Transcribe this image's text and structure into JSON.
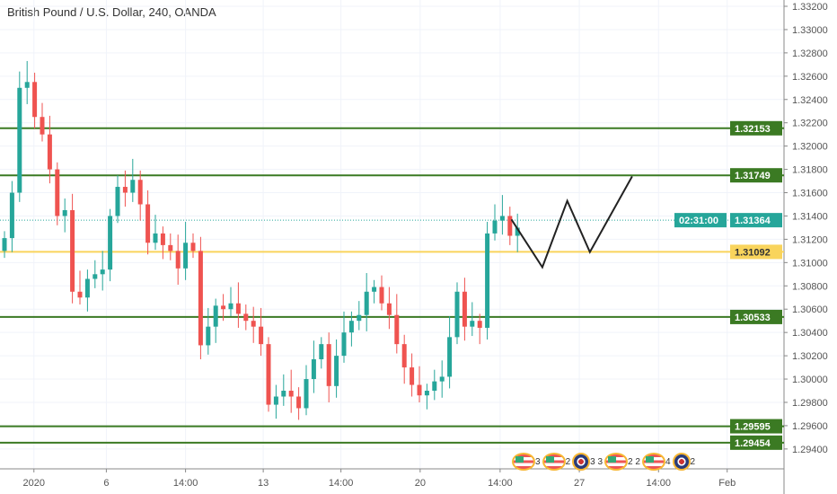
{
  "title": "British Pound / U.S. Dollar, 240, OANDA",
  "chart_data": {
    "type": "candlestick",
    "title": "British Pound / U.S. Dollar, 240, OANDA",
    "ylim": [
      1.2935,
      1.3325
    ],
    "price_ticks": [
      "1.33200",
      "1.33000",
      "1.32800",
      "1.32600",
      "1.32400",
      "1.32200",
      "1.32000",
      "1.31800",
      "1.31600",
      "1.31400",
      "1.31200",
      "1.31000",
      "1.30800",
      "1.30600",
      "1.30400",
      "1.30200",
      "1.30000",
      "1.29800",
      "1.29600",
      "1.29400"
    ],
    "time_ticks": [
      {
        "label": "2020",
        "i": 3.9
      },
      {
        "label": "6",
        "i": 13.5
      },
      {
        "label": "14:00",
        "i": 24
      },
      {
        "label": "13",
        "i": 34.3
      },
      {
        "label": "14:00",
        "i": 44.6
      },
      {
        "label": "20",
        "i": 55.1
      },
      {
        "label": "14:00",
        "i": 65.7
      },
      {
        "label": "27",
        "i": 76.2
      },
      {
        "label": "14:00",
        "i": 86.7
      },
      {
        "label": "Feb",
        "i": 95.8
      }
    ],
    "closes": [
      1.3121,
      1.316,
      1.325,
      1.3255,
      1.3225,
      1.321,
      1.318,
      1.314,
      1.3145,
      1.3075,
      1.307,
      1.3086,
      1.309,
      1.3094,
      1.314,
      1.3165,
      1.316,
      1.3171,
      1.315,
      1.3117,
      1.3125,
      1.3115,
      1.311,
      1.3095,
      1.3117,
      1.311,
      1.3029,
      1.3045,
      1.3063,
      1.306,
      1.3065,
      1.3056,
      1.305,
      1.3045,
      1.303,
      1.2978,
      1.2985,
      1.299,
      1.2985,
      1.2975,
      1.3,
      1.3017,
      1.303,
      1.2994,
      1.302,
      1.304,
      1.305,
      1.3055,
      1.3075,
      1.3079,
      1.3065,
      1.3055,
      1.303,
      1.301,
      1.2995,
      1.2986,
      1.299,
      1.2998,
      1.3002,
      1.3036,
      1.3075,
      1.3045,
      1.305,
      1.3044,
      1.3125,
      1.3136,
      1.314,
      1.3123,
      1.313
    ],
    "first_open": 1.311,
    "levels": [
      {
        "price": 1.32153,
        "label": "1.32153",
        "color": "#3b7a23"
      },
      {
        "price": 1.31749,
        "label": "1.31749",
        "color": "#3b7a23"
      },
      {
        "price": 1.31092,
        "label": "1.31092",
        "color": "#f9d45c",
        "text": "#333"
      },
      {
        "price": 1.30533,
        "label": "1.30533",
        "color": "#3b7a23"
      },
      {
        "price": 1.29595,
        "label": "1.29595",
        "color": "#3b7a23"
      },
      {
        "price": 1.29454,
        "label": "1.29454",
        "color": "#3b7a23"
      }
    ],
    "current_price": {
      "price": 1.31364,
      "label": "1.31364",
      "countdown": "02:31:00",
      "color": "#26a69a"
    },
    "projection": [
      {
        "i": 67.2,
        "p": 1.3137
      },
      {
        "i": 71.3,
        "p": 1.3096
      },
      {
        "i": 74.6,
        "p": 1.3153
      },
      {
        "i": 77.6,
        "p": 1.3109
      },
      {
        "i": 83.2,
        "p": 1.3174
      }
    ],
    "up_color": "#26a69a",
    "down_color": "#ef5350"
  },
  "events": [
    {
      "flag": "us",
      "count": "3"
    },
    {
      "flag": "us",
      "count": "2"
    },
    {
      "flag": "uk",
      "count": "3 3"
    },
    {
      "flag": "us",
      "count": "2 2"
    },
    {
      "flag": "us",
      "count": "4"
    },
    {
      "flag": "uk",
      "count": "2"
    }
  ]
}
